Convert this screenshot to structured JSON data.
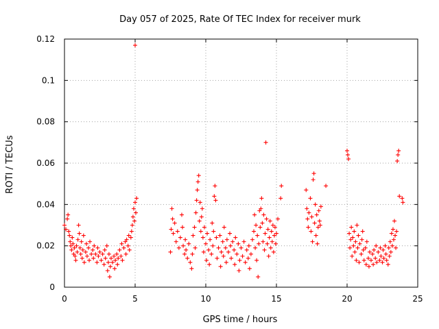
{
  "chart_data": {
    "type": "scatter",
    "title": "Day 057 of 2025, Rate Of TEC Index for receiver murk",
    "xlabel": "GPS time / hours",
    "ylabel": "ROTI / TECUs",
    "xlim": [
      0,
      25
    ],
    "ylim": [
      0,
      0.12
    ],
    "x_ticks": [
      "0",
      "5",
      "10",
      "15",
      "20",
      "25"
    ],
    "y_ticks": [
      "0",
      "0.02",
      "0.04",
      "0.06",
      "0.08",
      "0.1",
      "0.12"
    ],
    "grid": true,
    "marker": "+",
    "color": "#ff0000",
    "series": [
      {
        "values": [
          [
            0.0,
            0.03
          ],
          [
            0.1,
            0.028
          ],
          [
            0.2,
            0.033
          ],
          [
            0.25,
            0.035
          ],
          [
            0.3,
            0.027
          ],
          [
            0.35,
            0.025
          ],
          [
            0.4,
            0.022
          ],
          [
            0.45,
            0.02
          ],
          [
            0.5,
            0.018
          ],
          [
            0.55,
            0.024
          ],
          [
            0.6,
            0.021
          ],
          [
            0.65,
            0.016
          ],
          [
            0.7,
            0.019
          ],
          [
            0.75,
            0.015
          ],
          [
            0.8,
            0.013
          ],
          [
            0.85,
            0.02
          ],
          [
            0.9,
            0.017
          ],
          [
            0.95,
            0.023
          ],
          [
            1.0,
            0.03
          ],
          [
            1.05,
            0.026
          ],
          [
            1.1,
            0.019
          ],
          [
            1.15,
            0.016
          ],
          [
            1.2,
            0.022
          ],
          [
            1.25,
            0.014
          ],
          [
            1.3,
            0.018
          ],
          [
            1.35,
            0.025
          ],
          [
            1.4,
            0.012
          ],
          [
            1.5,
            0.017
          ],
          [
            1.55,
            0.021
          ],
          [
            1.6,
            0.015
          ],
          [
            1.7,
            0.019
          ],
          [
            1.75,
            0.013
          ],
          [
            1.8,
            0.022
          ],
          [
            1.9,
            0.016
          ],
          [
            2.0,
            0.018
          ],
          [
            2.05,
            0.014
          ],
          [
            2.1,
            0.02
          ],
          [
            2.2,
            0.016
          ],
          [
            2.3,
            0.012
          ],
          [
            2.35,
            0.019
          ],
          [
            2.4,
            0.015
          ],
          [
            2.5,
            0.017
          ],
          [
            2.6,
            0.013
          ],
          [
            2.7,
            0.016
          ],
          [
            2.8,
            0.011
          ],
          [
            2.85,
            0.018
          ],
          [
            2.9,
            0.014
          ],
          [
            3.0,
            0.02
          ],
          [
            3.05,
            0.008
          ],
          [
            3.1,
            0.012
          ],
          [
            3.15,
            0.016
          ],
          [
            3.2,
            0.005
          ],
          [
            3.25,
            0.01
          ],
          [
            3.3,
            0.014
          ],
          [
            3.4,
            0.012
          ],
          [
            3.5,
            0.015
          ],
          [
            3.55,
            0.009
          ],
          [
            3.6,
            0.013
          ],
          [
            3.7,
            0.016
          ],
          [
            3.75,
            0.011
          ],
          [
            3.8,
            0.014
          ],
          [
            3.9,
            0.018
          ],
          [
            4.0,
            0.015
          ],
          [
            4.05,
            0.021
          ],
          [
            4.1,
            0.013
          ],
          [
            4.2,
            0.019
          ],
          [
            4.3,
            0.022
          ],
          [
            4.35,
            0.016
          ],
          [
            4.4,
            0.023
          ],
          [
            4.5,
            0.02
          ],
          [
            4.55,
            0.025
          ],
          [
            4.6,
            0.018
          ],
          [
            4.7,
            0.024
          ],
          [
            4.75,
            0.027
          ],
          [
            4.8,
            0.03
          ],
          [
            4.85,
            0.034
          ],
          [
            4.9,
            0.038
          ],
          [
            4.95,
            0.032
          ],
          [
            5.0,
            0.041
          ],
          [
            5.05,
            0.036
          ],
          [
            5.1,
            0.043
          ],
          [
            5.0,
            0.117
          ],
          [
            7.5,
            0.017
          ],
          [
            7.55,
            0.028
          ],
          [
            7.6,
            0.038
          ],
          [
            7.65,
            0.033
          ],
          [
            7.7,
            0.026
          ],
          [
            7.8,
            0.031
          ],
          [
            7.9,
            0.022
          ],
          [
            8.0,
            0.027
          ],
          [
            8.1,
            0.019
          ],
          [
            8.2,
            0.024
          ],
          [
            8.3,
            0.035
          ],
          [
            8.35,
            0.029
          ],
          [
            8.4,
            0.02
          ],
          [
            8.5,
            0.016
          ],
          [
            8.55,
            0.023
          ],
          [
            8.6,
            0.018
          ],
          [
            8.7,
            0.014
          ],
          [
            8.8,
            0.021
          ],
          [
            8.9,
            0.012
          ],
          [
            9.0,
            0.009
          ],
          [
            9.05,
            0.016
          ],
          [
            9.1,
            0.025
          ],
          [
            9.2,
            0.029
          ],
          [
            9.25,
            0.019
          ],
          [
            9.3,
            0.036
          ],
          [
            9.35,
            0.042
          ],
          [
            9.4,
            0.047
          ],
          [
            9.45,
            0.051
          ],
          [
            9.5,
            0.054
          ],
          [
            9.55,
            0.032
          ],
          [
            9.6,
            0.041
          ],
          [
            9.65,
            0.027
          ],
          [
            9.7,
            0.034
          ],
          [
            9.75,
            0.038
          ],
          [
            9.8,
            0.024
          ],
          [
            9.85,
            0.017
          ],
          [
            9.9,
            0.029
          ],
          [
            10.0,
            0.021
          ],
          [
            10.05,
            0.013
          ],
          [
            10.1,
            0.026
          ],
          [
            10.2,
            0.018
          ],
          [
            10.25,
            0.011
          ],
          [
            10.3,
            0.023
          ],
          [
            10.4,
            0.016
          ],
          [
            10.45,
            0.031
          ],
          [
            10.5,
            0.02
          ],
          [
            10.55,
            0.027
          ],
          [
            10.6,
            0.044
          ],
          [
            10.65,
            0.049
          ],
          [
            10.7,
            0.042
          ],
          [
            10.75,
            0.024
          ],
          [
            10.8,
            0.014
          ],
          [
            10.9,
            0.019
          ],
          [
            11.0,
            0.025
          ],
          [
            11.05,
            0.01
          ],
          [
            11.1,
            0.017
          ],
          [
            11.2,
            0.022
          ],
          [
            11.25,
            0.015
          ],
          [
            11.3,
            0.029
          ],
          [
            11.4,
            0.019
          ],
          [
            11.45,
            0.012
          ],
          [
            11.5,
            0.023
          ],
          [
            11.6,
            0.017
          ],
          [
            11.7,
            0.026
          ],
          [
            11.75,
            0.02
          ],
          [
            11.8,
            0.014
          ],
          [
            11.9,
            0.022
          ],
          [
            12.0,
            0.018
          ],
          [
            12.05,
            0.011
          ],
          [
            12.1,
            0.024
          ],
          [
            12.2,
            0.016
          ],
          [
            12.3,
            0.021
          ],
          [
            12.35,
            0.008
          ],
          [
            12.4,
            0.013
          ],
          [
            12.5,
            0.019
          ],
          [
            12.6,
            0.015
          ],
          [
            12.7,
            0.022
          ],
          [
            12.8,
            0.012
          ],
          [
            12.9,
            0.018
          ],
          [
            13.0,
            0.014
          ],
          [
            13.05,
            0.02
          ],
          [
            13.1,
            0.009
          ],
          [
            13.2,
            0.016
          ],
          [
            13.3,
            0.023
          ],
          [
            13.4,
            0.027
          ],
          [
            13.45,
            0.035
          ],
          [
            13.5,
            0.019
          ],
          [
            13.55,
            0.03
          ],
          [
            13.6,
            0.013
          ],
          [
            13.65,
            0.025
          ],
          [
            13.7,
            0.005
          ],
          [
            13.75,
            0.021
          ],
          [
            13.8,
            0.037
          ],
          [
            13.85,
            0.029
          ],
          [
            13.9,
            0.038
          ],
          [
            13.95,
            0.043
          ],
          [
            14.0,
            0.031
          ],
          [
            14.05,
            0.022
          ],
          [
            14.1,
            0.035
          ],
          [
            14.15,
            0.018
          ],
          [
            14.2,
            0.026
          ],
          [
            14.25,
            0.07
          ],
          [
            14.3,
            0.033
          ],
          [
            14.35,
            0.021
          ],
          [
            14.4,
            0.028
          ],
          [
            14.45,
            0.015
          ],
          [
            14.5,
            0.024
          ],
          [
            14.55,
            0.032
          ],
          [
            14.6,
            0.019
          ],
          [
            14.65,
            0.027
          ],
          [
            14.7,
            0.022
          ],
          [
            14.75,
            0.03
          ],
          [
            14.8,
            0.017
          ],
          [
            14.85,
            0.025
          ],
          [
            14.9,
            0.029
          ],
          [
            14.95,
            0.021
          ],
          [
            15.0,
            0.026
          ],
          [
            15.1,
            0.033
          ],
          [
            15.3,
            0.043
          ],
          [
            15.35,
            0.049
          ],
          [
            17.1,
            0.047
          ],
          [
            17.15,
            0.038
          ],
          [
            17.2,
            0.033
          ],
          [
            17.25,
            0.029
          ],
          [
            17.3,
            0.036
          ],
          [
            17.4,
            0.043
          ],
          [
            17.45,
            0.027
          ],
          [
            17.5,
            0.034
          ],
          [
            17.55,
            0.022
          ],
          [
            17.6,
            0.052
          ],
          [
            17.65,
            0.055
          ],
          [
            17.7,
            0.031
          ],
          [
            17.75,
            0.04
          ],
          [
            17.8,
            0.025
          ],
          [
            17.85,
            0.035
          ],
          [
            17.9,
            0.021
          ],
          [
            17.95,
            0.029
          ],
          [
            18.0,
            0.037
          ],
          [
            18.05,
            0.032
          ],
          [
            18.1,
            0.03
          ],
          [
            18.15,
            0.039
          ],
          [
            18.5,
            0.049
          ],
          [
            20.0,
            0.066
          ],
          [
            20.05,
            0.064
          ],
          [
            20.1,
            0.062
          ],
          [
            20.15,
            0.026
          ],
          [
            20.2,
            0.019
          ],
          [
            20.25,
            0.023
          ],
          [
            20.3,
            0.029
          ],
          [
            20.35,
            0.015
          ],
          [
            20.4,
            0.024
          ],
          [
            20.45,
            0.02
          ],
          [
            20.5,
            0.027
          ],
          [
            20.55,
            0.017
          ],
          [
            20.6,
            0.022
          ],
          [
            20.65,
            0.013
          ],
          [
            20.7,
            0.03
          ],
          [
            20.75,
            0.019
          ],
          [
            20.8,
            0.025
          ],
          [
            20.85,
            0.012
          ],
          [
            20.9,
            0.021
          ],
          [
            21.0,
            0.016
          ],
          [
            21.05,
            0.023
          ],
          [
            21.1,
            0.027
          ],
          [
            21.15,
            0.018
          ],
          [
            21.2,
            0.013
          ],
          [
            21.3,
            0.019
          ],
          [
            21.35,
            0.011
          ],
          [
            21.4,
            0.022
          ],
          [
            21.5,
            0.014
          ],
          [
            21.55,
            0.01
          ],
          [
            21.6,
            0.017
          ],
          [
            21.7,
            0.013
          ],
          [
            21.8,
            0.016
          ],
          [
            21.85,
            0.011
          ],
          [
            21.9,
            0.018
          ],
          [
            22.0,
            0.014
          ],
          [
            22.05,
            0.02
          ],
          [
            22.1,
            0.012
          ],
          [
            22.2,
            0.017
          ],
          [
            22.3,
            0.013
          ],
          [
            22.35,
            0.019
          ],
          [
            22.4,
            0.015
          ],
          [
            22.5,
            0.012
          ],
          [
            22.55,
            0.018
          ],
          [
            22.6,
            0.014
          ],
          [
            22.7,
            0.02
          ],
          [
            22.75,
            0.016
          ],
          [
            22.8,
            0.013
          ],
          [
            22.9,
            0.011
          ],
          [
            22.95,
            0.019
          ],
          [
            23.0,
            0.015
          ],
          [
            23.05,
            0.022
          ],
          [
            23.1,
            0.017
          ],
          [
            23.15,
            0.026
          ],
          [
            23.2,
            0.02
          ],
          [
            23.25,
            0.028
          ],
          [
            23.3,
            0.023
          ],
          [
            23.35,
            0.032
          ],
          [
            23.4,
            0.025
          ],
          [
            23.45,
            0.019
          ],
          [
            23.5,
            0.027
          ],
          [
            23.55,
            0.061
          ],
          [
            23.6,
            0.064
          ],
          [
            23.65,
            0.066
          ],
          [
            23.7,
            0.044
          ],
          [
            23.9,
            0.043
          ],
          [
            23.95,
            0.041
          ]
        ]
      }
    ]
  }
}
